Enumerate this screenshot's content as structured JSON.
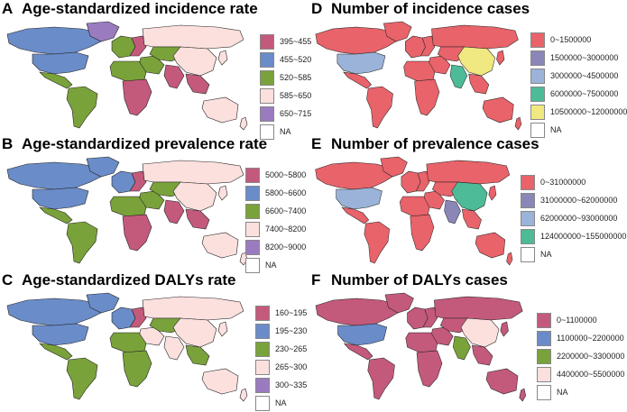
{
  "panels": [
    {
      "letter": "A",
      "title": "Age-standardized incidence rate",
      "legend": [
        {
          "label": "395~455",
          "color": "#c45a7b"
        },
        {
          "label": "455~520",
          "color": "#6a8cc9"
        },
        {
          "label": "520~585",
          "color": "#7aa23a"
        },
        {
          "label": "585~650",
          "color": "#fbe0de"
        },
        {
          "label": "650~715",
          "color": "#9b7bc0"
        },
        {
          "label": "NA",
          "color": "#ffffff"
        }
      ],
      "regions": {
        "na_north": "#6a8cc9",
        "usa": "#6a8cc9",
        "greenland": "#9b7bc0",
        "mexico": "#7aa23a",
        "south_america": "#7aa23a",
        "europe_w": "#7aa23a",
        "europe_e": "#c45a7b",
        "russia": "#fbe0de",
        "mideast": "#7aa23a",
        "africa_n": "#7aa23a",
        "africa_s": "#c45a7b",
        "central_asia": "#7aa23a",
        "china": "#fbe0de",
        "india": "#c45a7b",
        "se_asia": "#c45a7b",
        "japan": "#fbe0de",
        "australia": "#fbe0de",
        "nz": "#fbe0de"
      }
    },
    {
      "letter": "B",
      "title": "Age-standardized prevalence rate",
      "legend": [
        {
          "label": "5000~5800",
          "color": "#c45a7b"
        },
        {
          "label": "5800~6600",
          "color": "#6a8cc9"
        },
        {
          "label": "6600~7400",
          "color": "#7aa23a"
        },
        {
          "label": "7400~8200",
          "color": "#fbe0de"
        },
        {
          "label": "8200~9000",
          "color": "#9b7bc0"
        },
        {
          "label": "NA",
          "color": "#ffffff"
        }
      ],
      "regions": {
        "na_north": "#6a8cc9",
        "usa": "#6a8cc9",
        "greenland": "#6a8cc9",
        "mexico": "#7aa23a",
        "south_america": "#7aa23a",
        "europe_w": "#6a8cc9",
        "europe_e": "#c45a7b",
        "russia": "#fbe0de",
        "mideast": "#7aa23a",
        "africa_n": "#7aa23a",
        "africa_s": "#c45a7b",
        "central_asia": "#7aa23a",
        "china": "#fbe0de",
        "india": "#c45a7b",
        "se_asia": "#c45a7b",
        "japan": "#fbe0de",
        "australia": "#fbe0de",
        "nz": "#fbe0de"
      }
    },
    {
      "letter": "C",
      "title": "Age-standardized DALYs rate",
      "legend": [
        {
          "label": "160~195",
          "color": "#c45a7b"
        },
        {
          "label": "195~230",
          "color": "#6a8cc9"
        },
        {
          "label": "230~265",
          "color": "#7aa23a"
        },
        {
          "label": "265~300",
          "color": "#fbe0de"
        },
        {
          "label": "300~335",
          "color": "#9b7bc0"
        },
        {
          "label": "NA",
          "color": "#ffffff"
        }
      ],
      "regions": {
        "na_north": "#6a8cc9",
        "usa": "#6a8cc9",
        "greenland": "#6a8cc9",
        "mexico": "#7aa23a",
        "south_america": "#7aa23a",
        "europe_w": "#6a8cc9",
        "europe_e": "#c45a7b",
        "russia": "#fbe0de",
        "mideast": "#fbe0de",
        "africa_n": "#7aa23a",
        "africa_s": "#7aa23a",
        "central_asia": "#7aa23a",
        "china": "#fbe0de",
        "india": "#fbe0de",
        "se_asia": "#7aa23a",
        "japan": "#fbe0de",
        "australia": "#fbe0de",
        "nz": "#fbe0de"
      }
    },
    {
      "letter": "D",
      "title": "Number of incidence cases",
      "legend": [
        {
          "label": "0~1500000",
          "color": "#e8636a"
        },
        {
          "label": "1500000~3000000",
          "color": "#8a86b8"
        },
        {
          "label": "3000000~4500000",
          "color": "#9bb3d8"
        },
        {
          "label": "6000000~7500000",
          "color": "#4dbb98"
        },
        {
          "label": "10500000~12000000",
          "color": "#f0e880"
        },
        {
          "label": "NA",
          "color": "#ffffff"
        }
      ],
      "regions": {
        "na_north": "#e8636a",
        "usa": "#9bb3d8",
        "greenland": "#e8636a",
        "mexico": "#e8636a",
        "south_america": "#e8636a",
        "europe_w": "#e8636a",
        "europe_e": "#e8636a",
        "russia": "#e8636a",
        "mideast": "#e8636a",
        "africa_n": "#e8636a",
        "africa_s": "#e8636a",
        "central_asia": "#e8636a",
        "china": "#f0e880",
        "india": "#4dbb98",
        "se_asia": "#e8636a",
        "japan": "#e8636a",
        "australia": "#e8636a",
        "nz": "#e8636a"
      }
    },
    {
      "letter": "E",
      "title": "Number of prevalence cases",
      "legend": [
        {
          "label": "0~31000000",
          "color": "#e8636a"
        },
        {
          "label": "31000000~62000000",
          "color": "#8a86b8"
        },
        {
          "label": "62000000~93000000",
          "color": "#9bb3d8"
        },
        {
          "label": "124000000~155000000",
          "color": "#4dbb98"
        },
        {
          "label": "NA",
          "color": "#ffffff"
        }
      ],
      "regions": {
        "na_north": "#e8636a",
        "usa": "#9bb3d8",
        "greenland": "#e8636a",
        "mexico": "#e8636a",
        "south_america": "#e8636a",
        "europe_w": "#e8636a",
        "europe_e": "#e8636a",
        "russia": "#e8636a",
        "mideast": "#e8636a",
        "africa_n": "#e8636a",
        "africa_s": "#e8636a",
        "central_asia": "#e8636a",
        "china": "#4dbb98",
        "india": "#8a86b8",
        "se_asia": "#e8636a",
        "japan": "#e8636a",
        "australia": "#e8636a",
        "nz": "#e8636a"
      }
    },
    {
      "letter": "F",
      "title": "Number of DALYs cases",
      "legend": [
        {
          "label": "0~1100000",
          "color": "#c45a7b"
        },
        {
          "label": "1100000~2200000",
          "color": "#6a8cc9"
        },
        {
          "label": "2200000~3300000",
          "color": "#7aa23a"
        },
        {
          "label": "4400000~5500000",
          "color": "#fbe0de"
        },
        {
          "label": "NA",
          "color": "#ffffff"
        }
      ],
      "regions": {
        "na_north": "#c45a7b",
        "usa": "#6a8cc9",
        "greenland": "#c45a7b",
        "mexico": "#c45a7b",
        "south_america": "#c45a7b",
        "europe_w": "#c45a7b",
        "europe_e": "#c45a7b",
        "russia": "#c45a7b",
        "mideast": "#c45a7b",
        "africa_n": "#c45a7b",
        "africa_s": "#c45a7b",
        "central_asia": "#c45a7b",
        "china": "#fbe0de",
        "india": "#7aa23a",
        "se_asia": "#c45a7b",
        "japan": "#c45a7b",
        "australia": "#c45a7b",
        "nz": "#c45a7b"
      }
    }
  ]
}
